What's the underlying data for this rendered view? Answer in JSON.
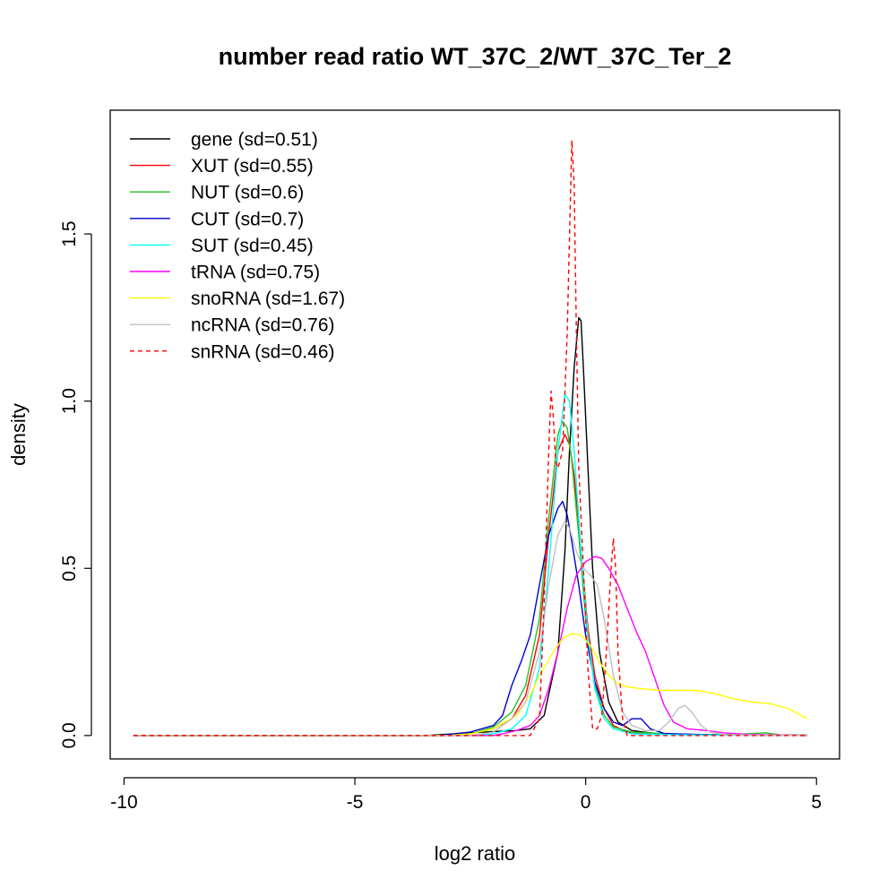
{
  "chart_data": {
    "type": "line",
    "title": "number read ratio WT_37C_2/WT_37C_Ter_2",
    "xlabel": "log2 ratio",
    "ylabel": "density",
    "xlim": [
      -10.3,
      5.5
    ],
    "ylim": [
      -0.07,
      1.87
    ],
    "x_ticks": [
      -10,
      -5,
      0,
      5
    ],
    "x_tick_labels": [
      "-10",
      "-5",
      "0",
      "5"
    ],
    "y_ticks": [
      0.0,
      0.5,
      1.0,
      1.5
    ],
    "y_tick_labels": [
      "0.0",
      "0.5",
      "1.0",
      "1.5"
    ],
    "grid": false,
    "legend_position": "top-left",
    "series": [
      {
        "name": "gene",
        "label": "gene (sd=0.51)",
        "color": "#000000",
        "dashed": false,
        "points": [
          [
            -9.8,
            0
          ],
          [
            -3.5,
            0
          ],
          [
            -3.0,
            0.004
          ],
          [
            -2.5,
            0.008
          ],
          [
            -2.0,
            0.012
          ],
          [
            -1.5,
            0.015
          ],
          [
            -1.2,
            0.02
          ],
          [
            -0.9,
            0.06
          ],
          [
            -0.6,
            0.25
          ],
          [
            -0.45,
            0.55
          ],
          [
            -0.35,
            0.85
          ],
          [
            -0.25,
            1.1
          ],
          [
            -0.15,
            1.25
          ],
          [
            -0.1,
            1.24
          ],
          [
            -0.05,
            1.1
          ],
          [
            0.05,
            0.8
          ],
          [
            0.15,
            0.5
          ],
          [
            0.3,
            0.25
          ],
          [
            0.5,
            0.1
          ],
          [
            0.7,
            0.04
          ],
          [
            1.0,
            0.015
          ],
          [
            1.5,
            0.006
          ],
          [
            2.0,
            0.004
          ],
          [
            3.0,
            0.002
          ],
          [
            4.8,
            0.001
          ]
        ]
      },
      {
        "name": "XUT",
        "label": "XUT (sd=0.55)",
        "color": "#ff0000",
        "dashed": false,
        "points": [
          [
            -9.8,
            0
          ],
          [
            -3.0,
            0
          ],
          [
            -2.5,
            0.005
          ],
          [
            -2.0,
            0.02
          ],
          [
            -1.6,
            0.05
          ],
          [
            -1.3,
            0.12
          ],
          [
            -1.0,
            0.3
          ],
          [
            -0.8,
            0.6
          ],
          [
            -0.6,
            0.85
          ],
          [
            -0.45,
            0.9
          ],
          [
            -0.35,
            0.87
          ],
          [
            -0.25,
            0.78
          ],
          [
            -0.1,
            0.55
          ],
          [
            0.05,
            0.32
          ],
          [
            0.2,
            0.18
          ],
          [
            0.4,
            0.08
          ],
          [
            0.6,
            0.03
          ],
          [
            0.9,
            0.01
          ],
          [
            1.5,
            0.004
          ],
          [
            2.5,
            0.002
          ],
          [
            4.8,
            0
          ]
        ]
      },
      {
        "name": "NUT",
        "label": "NUT (sd=0.6)",
        "color": "#22c322",
        "dashed": false,
        "points": [
          [
            -9.8,
            0
          ],
          [
            -3.0,
            0
          ],
          [
            -2.5,
            0.005
          ],
          [
            -2.0,
            0.025
          ],
          [
            -1.6,
            0.07
          ],
          [
            -1.3,
            0.15
          ],
          [
            -1.0,
            0.35
          ],
          [
            -0.8,
            0.65
          ],
          [
            -0.6,
            0.9
          ],
          [
            -0.5,
            0.94
          ],
          [
            -0.4,
            0.92
          ],
          [
            -0.3,
            0.82
          ],
          [
            -0.15,
            0.6
          ],
          [
            0.0,
            0.35
          ],
          [
            0.2,
            0.15
          ],
          [
            0.4,
            0.06
          ],
          [
            0.6,
            0.025
          ],
          [
            1.0,
            0.01
          ],
          [
            2.0,
            0.004
          ],
          [
            3.0,
            0.002
          ],
          [
            3.9,
            0.008
          ],
          [
            4.2,
            0.002
          ],
          [
            4.8,
            0
          ]
        ]
      },
      {
        "name": "CUT",
        "label": "CUT (sd=0.7)",
        "color": "#0000cd",
        "dashed": false,
        "points": [
          [
            -9.8,
            0
          ],
          [
            -3.2,
            0
          ],
          [
            -2.5,
            0.01
          ],
          [
            -2.0,
            0.03
          ],
          [
            -1.8,
            0.06
          ],
          [
            -1.6,
            0.15
          ],
          [
            -1.4,
            0.22
          ],
          [
            -1.2,
            0.3
          ],
          [
            -1.0,
            0.45
          ],
          [
            -0.8,
            0.6
          ],
          [
            -0.6,
            0.68
          ],
          [
            -0.5,
            0.7
          ],
          [
            -0.4,
            0.66
          ],
          [
            -0.3,
            0.58
          ],
          [
            -0.15,
            0.45
          ],
          [
            0.0,
            0.3
          ],
          [
            0.2,
            0.16
          ],
          [
            0.4,
            0.08
          ],
          [
            0.6,
            0.04
          ],
          [
            0.8,
            0.03
          ],
          [
            1.0,
            0.05
          ],
          [
            1.2,
            0.05
          ],
          [
            1.4,
            0.02
          ],
          [
            1.7,
            0.006
          ],
          [
            2.5,
            0.003
          ],
          [
            4.8,
            0
          ]
        ]
      },
      {
        "name": "SUT",
        "label": "SUT (sd=0.45)",
        "color": "#00ffff",
        "dashed": false,
        "points": [
          [
            -9.8,
            0
          ],
          [
            -2.5,
            0
          ],
          [
            -2.0,
            0.005
          ],
          [
            -1.6,
            0.02
          ],
          [
            -1.3,
            0.06
          ],
          [
            -1.0,
            0.2
          ],
          [
            -0.8,
            0.5
          ],
          [
            -0.6,
            0.85
          ],
          [
            -0.45,
            1.02
          ],
          [
            -0.35,
            1.0
          ],
          [
            -0.25,
            0.85
          ],
          [
            -0.1,
            0.55
          ],
          [
            0.05,
            0.3
          ],
          [
            0.2,
            0.14
          ],
          [
            0.4,
            0.05
          ],
          [
            0.6,
            0.02
          ],
          [
            1.0,
            0.005
          ],
          [
            2.0,
            0.002
          ],
          [
            4.8,
            0
          ]
        ]
      },
      {
        "name": "tRNA",
        "label": "tRNA (sd=0.75)",
        "color": "#ff00ff",
        "dashed": false,
        "points": [
          [
            -9.8,
            0
          ],
          [
            -2.0,
            0
          ],
          [
            -1.8,
            0.005
          ],
          [
            -1.5,
            0.015
          ],
          [
            -1.2,
            0.03
          ],
          [
            -1.0,
            0.06
          ],
          [
            -0.8,
            0.14
          ],
          [
            -0.6,
            0.25
          ],
          [
            -0.4,
            0.38
          ],
          [
            -0.2,
            0.48
          ],
          [
            0.0,
            0.52
          ],
          [
            0.2,
            0.535
          ],
          [
            0.35,
            0.53
          ],
          [
            0.5,
            0.5
          ],
          [
            0.7,
            0.45
          ],
          [
            0.9,
            0.38
          ],
          [
            1.1,
            0.31
          ],
          [
            1.3,
            0.25
          ],
          [
            1.5,
            0.17
          ],
          [
            1.7,
            0.09
          ],
          [
            1.9,
            0.04
          ],
          [
            2.2,
            0.02
          ],
          [
            2.6,
            0.015
          ],
          [
            3.0,
            0.008
          ],
          [
            3.5,
            0.004
          ],
          [
            4.8,
            0
          ]
        ]
      },
      {
        "name": "snoRNA",
        "label": "snoRNA (sd=1.67)",
        "color": "#ffff00",
        "dashed": false,
        "points": [
          [
            -9.8,
            0
          ],
          [
            -3.0,
            0
          ],
          [
            -2.5,
            0.005
          ],
          [
            -2.0,
            0.02
          ],
          [
            -1.5,
            0.06
          ],
          [
            -1.2,
            0.12
          ],
          [
            -1.0,
            0.18
          ],
          [
            -0.7,
            0.25
          ],
          [
            -0.5,
            0.29
          ],
          [
            -0.3,
            0.305
          ],
          [
            -0.1,
            0.3
          ],
          [
            0.1,
            0.27
          ],
          [
            0.3,
            0.22
          ],
          [
            0.5,
            0.18
          ],
          [
            0.7,
            0.155
          ],
          [
            0.9,
            0.145
          ],
          [
            1.2,
            0.14
          ],
          [
            1.6,
            0.135
          ],
          [
            2.0,
            0.135
          ],
          [
            2.4,
            0.135
          ],
          [
            2.8,
            0.125
          ],
          [
            3.2,
            0.11
          ],
          [
            3.6,
            0.1
          ],
          [
            4.0,
            0.095
          ],
          [
            4.4,
            0.08
          ],
          [
            4.8,
            0.05
          ]
        ]
      },
      {
        "name": "ncRNA",
        "label": "ncRNA (sd=0.76)",
        "color": "#c0c0c0",
        "dashed": false,
        "points": [
          [
            -9.8,
            0
          ],
          [
            -2.5,
            0
          ],
          [
            -2.0,
            0.01
          ],
          [
            -1.6,
            0.05
          ],
          [
            -1.3,
            0.1
          ],
          [
            -1.0,
            0.25
          ],
          [
            -0.8,
            0.45
          ],
          [
            -0.6,
            0.6
          ],
          [
            -0.45,
            0.64
          ],
          [
            -0.35,
            0.62
          ],
          [
            -0.2,
            0.55
          ],
          [
            -0.05,
            0.5
          ],
          [
            0.1,
            0.48
          ],
          [
            0.25,
            0.45
          ],
          [
            0.4,
            0.35
          ],
          [
            0.6,
            0.18
          ],
          [
            0.8,
            0.07
          ],
          [
            1.0,
            0.03
          ],
          [
            1.3,
            0.015
          ],
          [
            1.6,
            0.015
          ],
          [
            1.8,
            0.04
          ],
          [
            2.0,
            0.08
          ],
          [
            2.15,
            0.09
          ],
          [
            2.3,
            0.07
          ],
          [
            2.5,
            0.03
          ],
          [
            2.7,
            0.01
          ],
          [
            3.0,
            0.003
          ],
          [
            4.8,
            0
          ]
        ]
      },
      {
        "name": "snRNA",
        "label": "snRNA (sd=0.46)",
        "color": "#ff0000",
        "dashed": true,
        "points": [
          [
            -9.8,
            0
          ],
          [
            -1.2,
            0
          ],
          [
            -1.0,
            0.05
          ],
          [
            -0.9,
            0.4
          ],
          [
            -0.8,
            0.85
          ],
          [
            -0.75,
            1.03
          ],
          [
            -0.7,
            0.95
          ],
          [
            -0.65,
            0.82
          ],
          [
            -0.6,
            0.8
          ],
          [
            -0.5,
            0.85
          ],
          [
            -0.4,
            1.2
          ],
          [
            -0.3,
            1.78
          ],
          [
            -0.25,
            1.65
          ],
          [
            -0.2,
            1.2
          ],
          [
            -0.15,
            0.8
          ],
          [
            -0.05,
            0.5
          ],
          [
            0.05,
            0.2
          ],
          [
            0.15,
            0.02
          ],
          [
            0.25,
            0.02
          ],
          [
            0.35,
            0.06
          ],
          [
            0.45,
            0.25
          ],
          [
            0.55,
            0.5
          ],
          [
            0.6,
            0.59
          ],
          [
            0.65,
            0.5
          ],
          [
            0.7,
            0.25
          ],
          [
            0.8,
            0.05
          ],
          [
            0.9,
            0
          ],
          [
            4.8,
            0
          ]
        ]
      }
    ]
  }
}
